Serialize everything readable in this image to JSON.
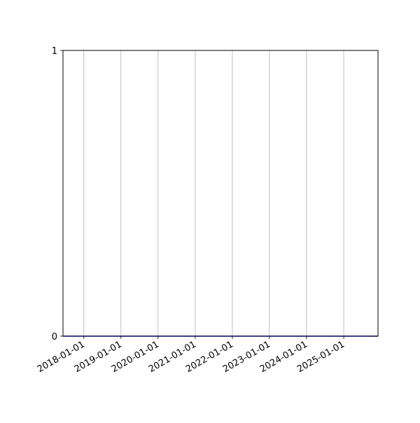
{
  "chart_data": {
    "type": "line",
    "title": "",
    "xlabel": "",
    "ylabel": "",
    "x_scale": "date",
    "xlim": [
      "2017-06-10",
      "2025-12-04"
    ],
    "ylim": [
      0,
      1
    ],
    "x_ticks": [
      "2018-01-01",
      "2019-01-01",
      "2020-01-01",
      "2021-01-01",
      "2022-01-01",
      "2023-01-01",
      "2024-01-01",
      "2025-01-01"
    ],
    "y_ticks": [
      "0",
      "1"
    ],
    "grid": "x-only",
    "series": [
      {
        "color": "#0000ff",
        "x": [
          "2017-06-10",
          "2025-12-04"
        ],
        "y": [
          0,
          0
        ]
      }
    ]
  }
}
